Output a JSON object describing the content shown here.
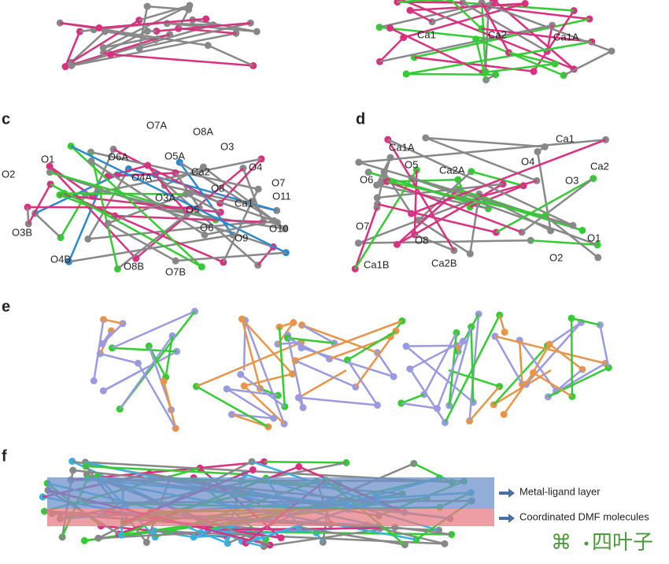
{
  "panels": {
    "top": {
      "atoms": [
        "Ca1",
        "Ca2",
        "Ca1A"
      ]
    },
    "c": {
      "label": "c",
      "atoms": [
        "O7A",
        "O8A",
        "O6A",
        "O5A",
        "O3",
        "O4A",
        "Ca2",
        "O4",
        "O3A",
        "O8",
        "O7",
        "O11",
        "O5",
        "Ca1",
        "O6",
        "O9",
        "O10",
        "O1",
        "O2",
        "O3B",
        "O4B",
        "O8B",
        "O7B"
      ]
    },
    "d": {
      "label": "d",
      "atoms": [
        "Ca1A",
        "O5",
        "Ca2A",
        "O6",
        "Ca1",
        "O4",
        "Ca2",
        "O3",
        "O7",
        "O8",
        "Ca1B",
        "Ca2B",
        "O1",
        "O2"
      ]
    },
    "e": {
      "label": "e"
    },
    "f": {
      "label": "f",
      "legend": [
        "Metal-ligand layer",
        "Coordinated DMF molecules"
      ]
    }
  },
  "watermark": "四叶子"
}
